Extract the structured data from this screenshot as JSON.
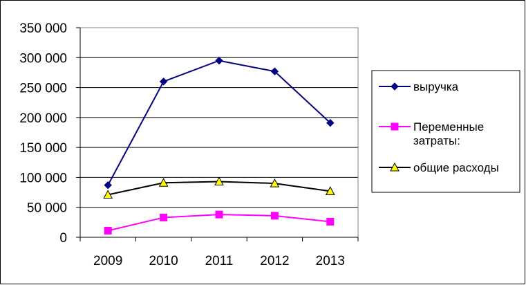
{
  "chart_data": {
    "type": "line",
    "title": "",
    "xlabel": "",
    "ylabel": "",
    "x": [
      "2009",
      "2010",
      "2011",
      "2012",
      "2013"
    ],
    "ylim": [
      0,
      350000
    ],
    "y_ticks": [
      0,
      50000,
      100000,
      150000,
      200000,
      250000,
      300000,
      350000
    ],
    "y_tick_labels": [
      "0",
      "50 000",
      "100 000",
      "150 000",
      "200 000",
      "250 000",
      "300 000",
      "350 000"
    ],
    "grid": true,
    "legend_position": "right",
    "series": [
      {
        "name": "выручка",
        "legend_lines": [
          "выручка"
        ],
        "values": [
          87000,
          260000,
          295000,
          277000,
          191000
        ],
        "color": "#000080",
        "marker": "diamond",
        "marker_color": "#000080"
      },
      {
        "name": "Переменные затраты:",
        "legend_lines": [
          "Переменные",
          "затраты:"
        ],
        "values": [
          11000,
          33000,
          38000,
          36000,
          26000
        ],
        "color": "#ff00ff",
        "marker": "square",
        "marker_color": "#ff00ff"
      },
      {
        "name": "общие расходы",
        "legend_lines": [
          "общие расходы"
        ],
        "values": [
          71000,
          91000,
          93000,
          90000,
          77000
        ],
        "color": "#000000",
        "marker": "triangle",
        "marker_color": "#ffff00"
      }
    ]
  }
}
